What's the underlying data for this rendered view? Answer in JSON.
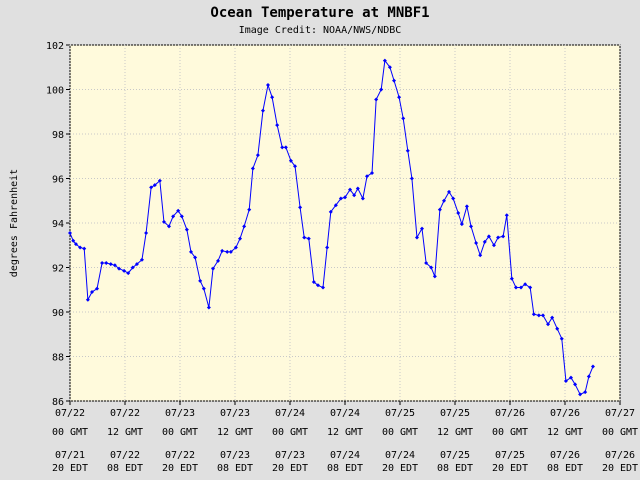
{
  "chart_data": {
    "type": "line",
    "title": "Ocean Temperature at MNBF1",
    "subtitle": "Image Credit: NOAA/NWS/NDBC",
    "y_label": "degrees Fahrenheit",
    "xlim": [
      0,
      120
    ],
    "ylim": [
      86,
      102
    ],
    "yticks": [
      86,
      88,
      90,
      92,
      94,
      96,
      98,
      100,
      102
    ],
    "xticks": [
      {
        "value": 0,
        "label": "07/22",
        "time": "00 GMT",
        "local_date": "07/21",
        "local_time": "20 EDT"
      },
      {
        "value": 12,
        "label": "07/22",
        "time": "12 GMT",
        "local_date": "07/22",
        "local_time": "08 EDT"
      },
      {
        "value": 24,
        "label": "07/23",
        "time": "00 GMT",
        "local_date": "07/22",
        "local_time": "20 EDT"
      },
      {
        "value": 36,
        "label": "07/23",
        "time": "12 GMT",
        "local_date": "07/23",
        "local_time": "08 EDT"
      },
      {
        "value": 48,
        "label": "07/24",
        "time": "00 GMT",
        "local_date": "07/23",
        "local_time": "20 EDT"
      },
      {
        "value": 60,
        "label": "07/24",
        "time": "12 GMT",
        "local_date": "07/24",
        "local_time": "08 EDT"
      },
      {
        "value": 72,
        "label": "07/25",
        "time": "00 GMT",
        "local_date": "07/24",
        "local_time": "20 EDT"
      },
      {
        "value": 84,
        "label": "07/25",
        "time": "12 GMT",
        "local_date": "07/25",
        "local_time": "08 EDT"
      },
      {
        "value": 96,
        "label": "07/26",
        "time": "00 GMT",
        "local_date": "07/25",
        "local_time": "20 EDT"
      },
      {
        "value": 108,
        "label": "07/26",
        "time": "12 GMT",
        "local_date": "07/26",
        "local_time": "08 EDT"
      },
      {
        "value": 120,
        "label": "07/27",
        "time": "00 GMT",
        "local_date": "07/26",
        "local_time": "20 EDT"
      }
    ],
    "grid": true,
    "color": "#0000ff",
    "x": [
      0,
      0.7,
      1.3,
      2.2,
      3.1,
      3.9,
      4.8,
      5.9,
      7.0,
      7.9,
      8.9,
      9.8,
      10.7,
      11.8,
      12.7,
      13.7,
      14.6,
      15.7,
      16.6,
      17.7,
      18.5,
      19.6,
      20.5,
      21.6,
      22.5,
      23.6,
      24.4,
      25.5,
      26.4,
      27.3,
      28.4,
      29.2,
      30.3,
      31.2,
      32.3,
      33.2,
      34.3,
      35.1,
      36.2,
      37.1,
      38.0,
      39.1,
      39.9,
      41.0,
      42.1,
      43.2,
      44.1,
      45.2,
      46.3,
      47.1,
      48.2,
      49.1,
      50.2,
      51.1,
      52.1,
      53.2,
      54.1,
      55.2,
      56.1,
      56.9,
      58.0,
      59.1,
      60.0,
      61.1,
      62.0,
      62.8,
      63.9,
      64.8,
      65.9,
      66.8,
      67.9,
      68.7,
      69.8,
      70.7,
      71.8,
      72.7,
      73.7,
      74.6,
      75.7,
      76.8,
      77.7,
      78.8,
      79.6,
      80.7,
      81.6,
      82.7,
      83.6,
      84.7,
      85.5,
      86.6,
      87.5,
      88.6,
      89.5,
      90.5,
      91.4,
      92.5,
      93.4,
      94.5,
      95.3,
      96.4,
      97.3,
      98.4,
      99.3,
      100.4,
      101.2,
      102.3,
      103.2,
      104.3,
      105.2,
      106.3,
      107.3,
      108.2,
      109.3,
      110.2,
      111.3,
      112.4,
      113.2,
      114.1
    ],
    "values": [
      93.55,
      93.2,
      93.05,
      92.9,
      92.85,
      90.55,
      90.9,
      91.05,
      92.2,
      92.2,
      92.15,
      92.1,
      91.95,
      91.85,
      91.75,
      92.0,
      92.15,
      92.35,
      93.55,
      95.6,
      95.7,
      95.9,
      94.05,
      93.85,
      94.3,
      94.55,
      94.3,
      93.7,
      92.7,
      92.45,
      91.4,
      91.05,
      90.2,
      91.95,
      92.3,
      92.75,
      92.7,
      92.7,
      92.9,
      93.3,
      93.85,
      94.6,
      96.45,
      97.05,
      99.05,
      100.2,
      99.65,
      98.4,
      97.4,
      97.4,
      96.8,
      96.55,
      94.7,
      93.35,
      93.3,
      91.35,
      91.2,
      91.1,
      92.9,
      94.5,
      94.8,
      95.1,
      95.15,
      95.5,
      95.25,
      95.55,
      95.1,
      96.1,
      96.25,
      99.55,
      100.0,
      101.3,
      101.0,
      100.4,
      99.65,
      98.7,
      97.25,
      96.0,
      93.35,
      93.75,
      92.2,
      92.0,
      91.6,
      94.6,
      95.0,
      95.4,
      95.1,
      94.45,
      93.95,
      94.75,
      93.85,
      93.1,
      92.55,
      93.15,
      93.4,
      93.0,
      93.35,
      93.4,
      94.35,
      91.5,
      91.1,
      91.1,
      91.25,
      91.1,
      89.9,
      89.85,
      89.85,
      89.45,
      89.75,
      89.25,
      88.8,
      86.9,
      87.05,
      86.75,
      86.3,
      86.4,
      87.1,
      87.55
    ]
  }
}
